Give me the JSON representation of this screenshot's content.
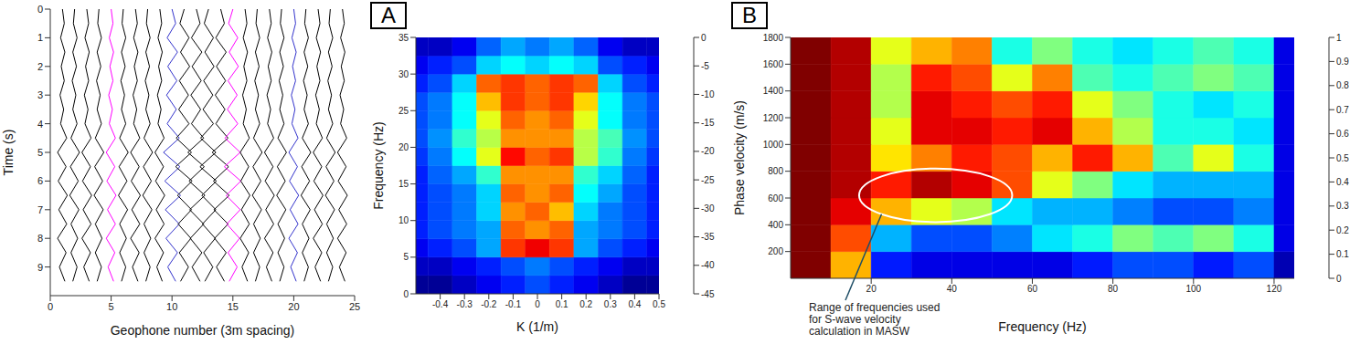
{
  "chart_data": [
    {
      "type": "line",
      "xlabel": "Geophone number (3m spacing)",
      "ylabel": "Time (s)",
      "xlim": [
        0,
        25
      ],
      "xticks": [
        0,
        5,
        10,
        15,
        20,
        25
      ],
      "ylim": [
        10,
        0
      ],
      "yticks": [
        0,
        1,
        2,
        3,
        4,
        5,
        6,
        7,
        8,
        9
      ],
      "y": [
        0,
        0.5,
        1,
        1.5,
        2,
        2.5,
        3,
        3.5,
        4,
        4.5,
        5,
        5.5,
        6,
        6.5,
        7,
        7.5,
        8,
        8.5,
        9,
        9.5
      ],
      "series": [
        {
          "color": "#000000",
          "x": [
            1,
            1.15,
            0.85,
            1.2,
            0.9,
            1.15,
            0.8,
            1.1,
            0.85,
            1.35,
            0.6,
            1.3,
            0.65,
            1.4,
            0.7,
            1.35,
            0.6,
            1.3,
            0.75,
            1.2
          ]
        },
        {
          "color": "#000000",
          "x": [
            2,
            1.9,
            2.2,
            1.85,
            2.15,
            1.8,
            2.1,
            1.85,
            2.2,
            1.7,
            2.4,
            1.65,
            2.3,
            1.6,
            2.35,
            1.7,
            2.25,
            1.7,
            2.2,
            1.85
          ]
        },
        {
          "color": "#000000",
          "x": [
            3,
            3.15,
            2.85,
            3.2,
            2.9,
            3.15,
            2.8,
            3.1,
            2.85,
            3.35,
            2.6,
            3.3,
            2.65,
            3.4,
            2.7,
            3.35,
            2.6,
            3.3,
            2.75,
            3.2
          ]
        },
        {
          "color": "#000000",
          "x": [
            4,
            3.9,
            4.2,
            3.85,
            4.15,
            3.8,
            4.1,
            3.85,
            4.2,
            3.7,
            4.4,
            3.65,
            4.3,
            3.6,
            4.35,
            3.7,
            4.25,
            3.7,
            4.2,
            3.85
          ]
        },
        {
          "color": "#ff00ff",
          "x": [
            5,
            5.15,
            4.85,
            5.2,
            4.9,
            5.15,
            4.8,
            5.1,
            4.85,
            5.35,
            4.6,
            5.3,
            4.65,
            5.4,
            4.7,
            5.35,
            4.6,
            5.3,
            4.75,
            5.2
          ]
        },
        {
          "color": "#000000",
          "x": [
            6,
            5.9,
            6.2,
            5.85,
            6.15,
            5.8,
            6.1,
            5.85,
            6.2,
            5.7,
            6.4,
            5.65,
            6.3,
            5.6,
            6.35,
            5.7,
            6.25,
            5.7,
            6.2,
            5.85
          ]
        },
        {
          "color": "#000000",
          "x": [
            7,
            7.15,
            6.85,
            7.2,
            6.9,
            7.15,
            6.8,
            7.1,
            6.85,
            7.35,
            6.6,
            7.3,
            6.65,
            7.4,
            6.7,
            7.35,
            6.6,
            7.3,
            6.75,
            7.2
          ]
        },
        {
          "color": "#000000",
          "x": [
            8,
            7.9,
            8.2,
            7.85,
            8.15,
            7.8,
            8.1,
            7.85,
            8.2,
            7.7,
            8.4,
            7.65,
            8.3,
            7.6,
            8.35,
            7.7,
            8.25,
            7.7,
            8.2,
            7.85
          ]
        },
        {
          "color": "#000000",
          "x": [
            9,
            9.15,
            8.85,
            9.2,
            8.9,
            9.15,
            8.8,
            9.1,
            8.85,
            9.35,
            8.6,
            9.3,
            8.65,
            9.4,
            8.7,
            9.35,
            8.6,
            9.3,
            8.75,
            9.2
          ]
        },
        {
          "color": "#3333cc",
          "x": [
            10,
            10.3,
            9.6,
            10.45,
            9.65,
            10.4,
            9.55,
            10.35,
            9.6,
            10.6,
            9.3,
            10.65,
            9.4,
            10.7,
            9.45,
            10.6,
            9.5,
            10.45,
            9.65,
            10.3
          ]
        },
        {
          "color": "#000000",
          "x": [
            11,
            10.65,
            11.4,
            10.7,
            11.45,
            10.6,
            11.35,
            10.55,
            11.4,
            10.35,
            11.6,
            10.3,
            11.65,
            10.45,
            11.6,
            10.5,
            11.55,
            10.6,
            11.35,
            10.7
          ]
        },
        {
          "color": "#000000",
          "x": [
            12,
            12.3,
            11.6,
            12.45,
            11.65,
            12.4,
            11.55,
            12.35,
            11.6,
            12.6,
            11.3,
            12.65,
            11.4,
            12.7,
            11.45,
            12.6,
            11.5,
            12.45,
            11.65,
            12.3
          ]
        },
        {
          "color": "#000000",
          "x": [
            13,
            12.65,
            13.4,
            12.7,
            13.45,
            12.6,
            13.35,
            12.55,
            13.4,
            12.35,
            13.6,
            12.3,
            13.65,
            12.45,
            13.6,
            12.5,
            13.55,
            12.6,
            13.35,
            12.7
          ]
        },
        {
          "color": "#000000",
          "x": [
            14,
            14.3,
            13.6,
            14.45,
            13.65,
            14.4,
            13.55,
            14.35,
            13.6,
            14.6,
            13.3,
            14.65,
            13.4,
            14.7,
            13.45,
            14.6,
            13.5,
            14.45,
            13.65,
            14.3
          ]
        },
        {
          "color": "#ff00ff",
          "x": [
            15,
            14.65,
            15.4,
            14.7,
            15.45,
            14.6,
            15.35,
            14.55,
            15.4,
            14.35,
            15.6,
            14.3,
            15.65,
            14.45,
            15.6,
            14.5,
            15.55,
            14.6,
            15.35,
            14.7
          ]
        },
        {
          "color": "#000000",
          "x": [
            16,
            16.15,
            15.85,
            16.2,
            15.9,
            16.15,
            15.8,
            16.1,
            15.85,
            16.35,
            15.6,
            16.3,
            15.65,
            16.4,
            15.7,
            16.35,
            15.6,
            16.3,
            15.75,
            16.2
          ]
        },
        {
          "color": "#000000",
          "x": [
            17,
            16.9,
            17.2,
            16.85,
            17.15,
            16.8,
            17.1,
            16.85,
            17.2,
            16.7,
            17.4,
            16.65,
            17.3,
            16.6,
            17.35,
            16.7,
            17.25,
            16.7,
            17.2,
            16.85
          ]
        },
        {
          "color": "#000000",
          "x": [
            18,
            18.15,
            17.85,
            18.2,
            17.9,
            18.15,
            17.8,
            18.1,
            17.85,
            18.35,
            17.6,
            18.3,
            17.65,
            18.4,
            17.7,
            18.35,
            17.6,
            18.3,
            17.75,
            18.2
          ]
        },
        {
          "color": "#000000",
          "x": [
            19,
            18.9,
            19.2,
            18.85,
            19.15,
            18.8,
            19.1,
            18.85,
            19.2,
            18.7,
            19.4,
            18.65,
            19.3,
            18.6,
            19.35,
            18.7,
            19.25,
            18.7,
            19.2,
            18.85
          ]
        },
        {
          "color": "#3333cc",
          "x": [
            20,
            20.15,
            19.85,
            20.2,
            19.9,
            20.15,
            19.8,
            20.1,
            19.85,
            20.35,
            19.6,
            20.3,
            19.65,
            20.4,
            19.7,
            20.35,
            19.6,
            20.3,
            19.75,
            20.2
          ]
        },
        {
          "color": "#000000",
          "x": [
            21,
            20.9,
            21.2,
            20.85,
            21.15,
            20.8,
            21.1,
            20.85,
            21.2,
            20.7,
            21.4,
            20.65,
            21.3,
            20.6,
            21.35,
            20.7,
            21.25,
            20.7,
            21.2,
            20.85
          ]
        },
        {
          "color": "#000000",
          "x": [
            22,
            22.15,
            21.85,
            22.2,
            21.9,
            22.15,
            21.8,
            22.1,
            21.85,
            22.35,
            21.6,
            22.3,
            21.65,
            22.4,
            21.7,
            22.35,
            21.6,
            22.3,
            21.75,
            22.2
          ]
        },
        {
          "color": "#000000",
          "x": [
            23,
            22.9,
            23.2,
            22.85,
            23.15,
            22.8,
            23.1,
            22.85,
            23.2,
            22.7,
            23.4,
            22.65,
            23.3,
            22.6,
            23.35,
            22.7,
            23.25,
            22.7,
            23.2,
            22.85
          ]
        },
        {
          "color": "#000000",
          "x": [
            24,
            24.15,
            23.85,
            24.2,
            23.9,
            24.15,
            23.8,
            24.1,
            23.85,
            24.35,
            23.6,
            24.3,
            23.65,
            24.4,
            23.7,
            24.35,
            23.6,
            24.3,
            23.75,
            24.2
          ]
        }
      ]
    },
    {
      "type": "heatmap",
      "label": "A",
      "xlabel": "K (1/m)",
      "ylabel": "Frequency (Hz)",
      "xlim": [
        -0.5,
        0.5
      ],
      "xticks": [
        -0.4,
        -0.3,
        -0.2,
        -0.1,
        0,
        0.1,
        0.2,
        0.3,
        0.4,
        0.5
      ],
      "ylim": [
        0,
        35
      ],
      "yticks": [
        0,
        5,
        10,
        15,
        20,
        25,
        30,
        35
      ],
      "x_edges": [
        -0.5,
        -0.45,
        -0.35,
        -0.25,
        -0.15,
        -0.05,
        0.05,
        0.15,
        0.25,
        0.35,
        0.45,
        0.5
      ],
      "y_edges": [
        0,
        2.5,
        5,
        7.5,
        10,
        12.5,
        15,
        17.5,
        20,
        22.5,
        25,
        27.5,
        30,
        32.5,
        35
      ],
      "cells": [
        [
          -44,
          -44,
          -42,
          -40,
          -38,
          -36,
          -38,
          -40,
          -42,
          -44,
          -44
        ],
        [
          -42,
          -42,
          -40,
          -38,
          -36,
          -34,
          -36,
          -38,
          -40,
          -42,
          -42
        ],
        [
          -40,
          -38,
          -36,
          -32,
          -8,
          -5,
          -8,
          -32,
          -36,
          -38,
          -40
        ],
        [
          -38,
          -36,
          -34,
          -32,
          -10,
          -12,
          -10,
          -32,
          -34,
          -36,
          -38
        ],
        [
          -38,
          -36,
          -34,
          -30,
          -12,
          -10,
          -14,
          -30,
          -34,
          -36,
          -38
        ],
        [
          -38,
          -36,
          -34,
          -30,
          -10,
          -12,
          -10,
          -28,
          -32,
          -36,
          -38
        ],
        [
          -38,
          -35,
          -32,
          -26,
          -12,
          -12,
          -12,
          -26,
          -30,
          -35,
          -38
        ],
        [
          -37,
          -34,
          -28,
          -18,
          -6,
          -10,
          -8,
          -20,
          -26,
          -34,
          -37
        ],
        [
          -36,
          -33,
          -26,
          -20,
          -12,
          -12,
          -12,
          -20,
          -25,
          -33,
          -36
        ],
        [
          -36,
          -34,
          -28,
          -18,
          -10,
          -12,
          -10,
          -18,
          -28,
          -34,
          -36
        ],
        [
          -36,
          -34,
          -28,
          -14,
          -8,
          -10,
          -8,
          -15,
          -28,
          -34,
          -36
        ],
        [
          -38,
          -36,
          -30,
          -10,
          -8,
          -10,
          -8,
          -10,
          -30,
          -36,
          -38
        ],
        [
          -40,
          -38,
          -36,
          -30,
          -28,
          -30,
          -28,
          -30,
          -36,
          -38,
          -40
        ],
        [
          -42,
          -42,
          -40,
          -35,
          -32,
          -34,
          -32,
          -35,
          -40,
          -42,
          -42
        ]
      ],
      "colorbar": {
        "range": [
          -45,
          0
        ],
        "ticks": [
          0,
          -5,
          -10,
          -15,
          -20,
          -25,
          -30,
          -35,
          -40,
          -45
        ]
      }
    },
    {
      "type": "heatmap",
      "label": "B",
      "xlabel": "Frequency (Hz)",
      "ylabel": "Phase velocity (m/s)",
      "xlim": [
        0,
        125
      ],
      "xticks": [
        20,
        40,
        60,
        80,
        100,
        120
      ],
      "ylim": [
        0,
        1800
      ],
      "yticks": [
        200,
        400,
        600,
        800,
        1000,
        1200,
        1400,
        1600,
        1800
      ],
      "x_edges": [
        0,
        10,
        20,
        30,
        40,
        50,
        60,
        70,
        80,
        90,
        100,
        110,
        120,
        125
      ],
      "y_edges": [
        0,
        200,
        400,
        600,
        800,
        1000,
        1200,
        1400,
        1600,
        1800
      ],
      "cells": [
        [
          1,
          0.7,
          0.15,
          0.1,
          0.1,
          0.1,
          0.1,
          0.15,
          0.2,
          0.2,
          0.15,
          0.2,
          0.05
        ],
        [
          1,
          0.8,
          0.3,
          0.2,
          0.2,
          0.25,
          0.35,
          0.4,
          0.5,
          0.45,
          0.5,
          0.4,
          0.1
        ],
        [
          1,
          0.9,
          0.7,
          0.6,
          0.55,
          0.35,
          0.3,
          0.3,
          0.25,
          0.2,
          0.2,
          0.25,
          0.1
        ],
        [
          1,
          0.95,
          0.85,
          0.95,
          0.9,
          0.8,
          0.6,
          0.5,
          0.35,
          0.3,
          0.3,
          0.3,
          0.1
        ],
        [
          1,
          0.95,
          0.65,
          0.75,
          0.85,
          0.8,
          0.7,
          0.85,
          0.7,
          0.45,
          0.6,
          0.4,
          0.1
        ],
        [
          1,
          0.95,
          0.6,
          0.9,
          0.9,
          0.85,
          0.9,
          0.7,
          0.55,
          0.4,
          0.4,
          0.35,
          0.1
        ],
        [
          1,
          0.95,
          0.55,
          0.9,
          0.85,
          0.8,
          0.85,
          0.6,
          0.5,
          0.4,
          0.35,
          0.4,
          0.1
        ],
        [
          1,
          0.95,
          0.55,
          0.85,
          0.8,
          0.6,
          0.75,
          0.45,
          0.4,
          0.45,
          0.5,
          0.45,
          0.1
        ],
        [
          1,
          0.95,
          0.6,
          0.7,
          0.75,
          0.4,
          0.5,
          0.4,
          0.35,
          0.4,
          0.45,
          0.4,
          0.1
        ]
      ],
      "colorbar": {
        "range": [
          0,
          1
        ],
        "ticks": [
          0,
          0.1,
          0.2,
          0.3,
          0.4,
          0.5,
          0.6,
          0.7,
          0.8,
          0.9,
          1
        ]
      },
      "annotation": {
        "text": "Range of frequencies used for S-wave velocity calculation in MASW",
        "x": [
          17,
          55
        ],
        "y": [
          420,
          820
        ]
      }
    }
  ]
}
